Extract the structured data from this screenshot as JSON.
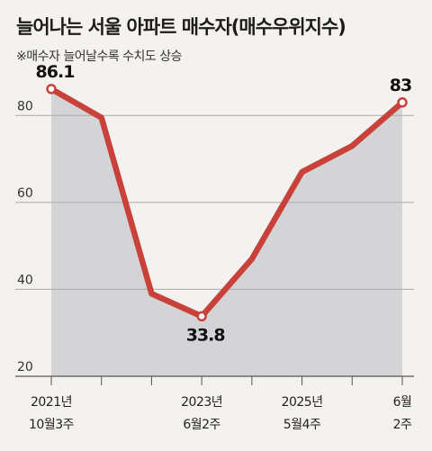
{
  "title": "늘어나는 서울 아파트 매수자(매수우위지수)",
  "subtitle": "※매수자 늘어날수록 수치도 상승",
  "chart_data": {
    "type": "area",
    "title": "늘어나는 서울 아파트 매수자(매수우위지수)",
    "subtitle": "※매수자 늘어날수록 수치도 상승",
    "ylim": [
      20,
      90
    ],
    "yticks": [
      20,
      40,
      60,
      80
    ],
    "grid": true,
    "x": [
      0,
      1,
      2,
      3,
      4,
      5,
      6,
      7
    ],
    "x_tick_labels": [
      {
        "index": 0,
        "lines": [
          "2021년",
          "10월3주"
        ]
      },
      {
        "index": 3,
        "lines": [
          "2023년",
          "6월2주"
        ]
      },
      {
        "index": 5,
        "lines": [
          "2025년",
          "5월4주"
        ]
      },
      {
        "index": 7,
        "lines": [
          "6월",
          "2주"
        ]
      }
    ],
    "series": [
      {
        "values": [
          86.1,
          79.5,
          39.0,
          33.8,
          47.0,
          67.0,
          73.0,
          83.0
        ]
      }
    ],
    "data_labels": [
      {
        "index": 0,
        "text": "86.1"
      },
      {
        "index": 3,
        "text": "33.8"
      },
      {
        "index": 7,
        "text": "83"
      }
    ],
    "colors": {
      "line": "#c9413b",
      "area": "#d4d3d6",
      "grid": "#a9a9a9",
      "background": "#f3f2ee"
    }
  }
}
